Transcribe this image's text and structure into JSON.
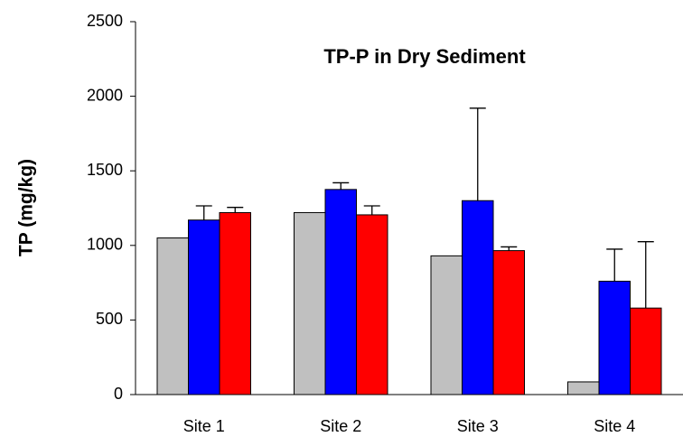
{
  "chart_data": {
    "type": "bar",
    "title": "TP-P in Dry Sediment",
    "y_label": "TP (mg/kg)",
    "categories": [
      "Site 1",
      "Site 2",
      "Site 3",
      "Site 4"
    ],
    "series": [
      {
        "color": "#c0c0c0",
        "values": [
          1050,
          1220,
          930,
          85
        ]
      },
      {
        "color": "#0000ff",
        "values": [
          1170,
          1375,
          1300,
          760
        ],
        "errors": [
          95,
          45,
          620,
          215
        ]
      },
      {
        "color": "#ff0000",
        "values": [
          1220,
          1205,
          965,
          580
        ],
        "errors": [
          35,
          60,
          25,
          445
        ]
      }
    ],
    "ylim": [
      0,
      2500
    ],
    "yticks": [
      0,
      500,
      1000,
      1500,
      2000,
      2500
    ],
    "grid": false
  }
}
